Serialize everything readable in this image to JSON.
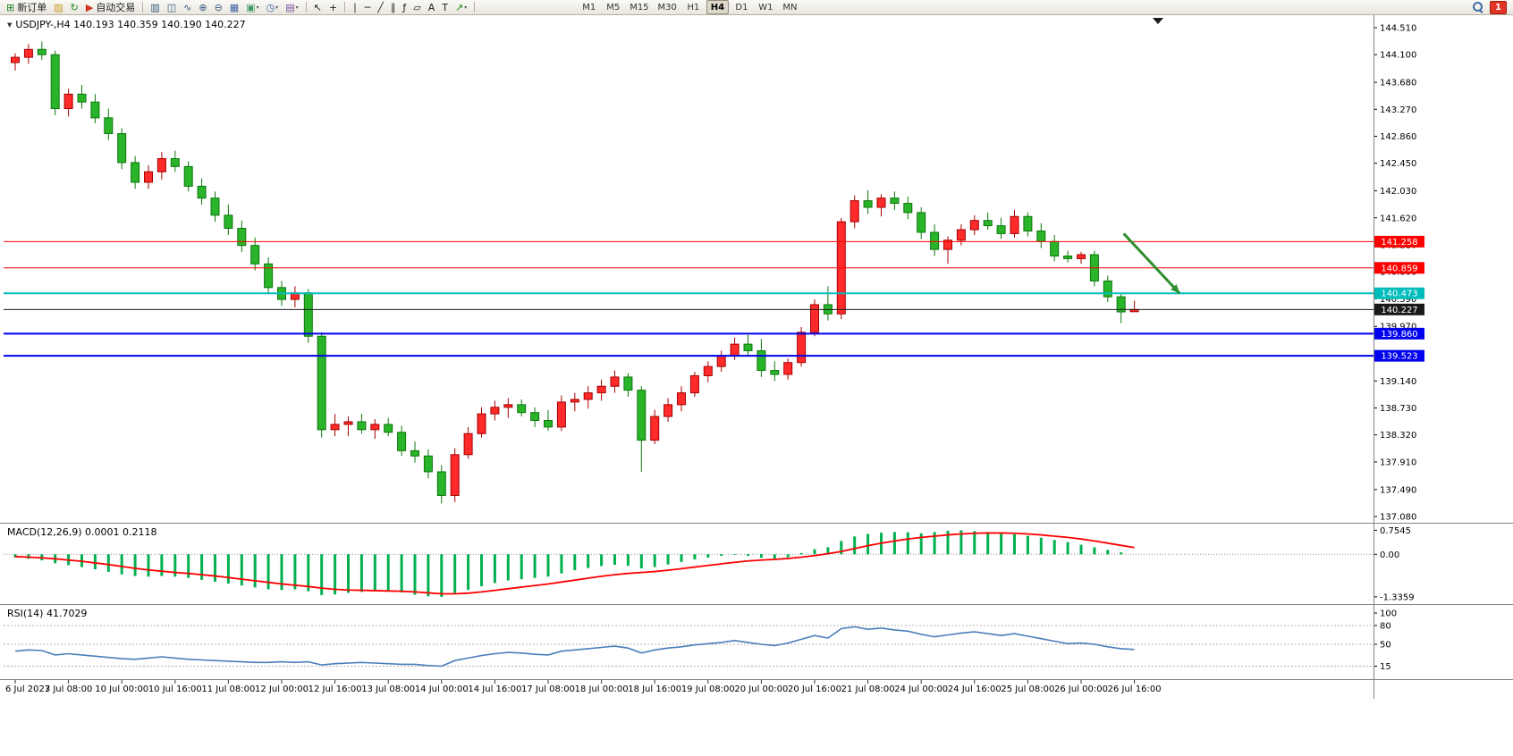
{
  "toolbar": {
    "badge": "1",
    "groups": [
      {
        "items": [
          {
            "name": "new-order",
            "glyph": "⊞",
            "color": "#1d7d1d",
            "label": "新订单"
          }
        ]
      },
      {
        "items": [
          {
            "name": "profiles",
            "glyph": "▨",
            "color": "#c79a24"
          },
          {
            "name": "refresh",
            "glyph": "↻",
            "color": "#1d8a1d"
          }
        ]
      },
      {
        "items": [
          {
            "name": "autotrade",
            "glyph": "▶",
            "color": "#cf3322",
            "label": "自动交易"
          }
        ]
      },
      {
        "sep": true
      },
      {
        "items": [
          {
            "name": "bar-chart",
            "glyph": "▥",
            "color": "#30577e"
          },
          {
            "name": "candlestick-chart",
            "glyph": "◫",
            "color": "#30577e"
          },
          {
            "name": "line-chart",
            "glyph": "∿",
            "color": "#30577e"
          },
          {
            "name": "zoom-in",
            "glyph": "⊕",
            "color": "#30577e"
          },
          {
            "name": "zoom-out",
            "glyph": "⊖",
            "color": "#30577e"
          },
          {
            "name": "tile-windows",
            "glyph": "▦",
            "color": "#3f62a5"
          },
          {
            "name": "indicators",
            "glyph": "▣",
            "color": "#3f9a5f",
            "caret": true
          },
          {
            "name": "periods",
            "glyph": "◷",
            "color": "#3f62a5",
            "caret": true
          },
          {
            "name": "templates",
            "glyph": "▤",
            "color": "#7a4fa0",
            "caret": true
          }
        ]
      },
      {
        "sep": true
      },
      {
        "items": [
          {
            "name": "cursor",
            "glyph": "↖",
            "color": "#1e1e1e"
          },
          {
            "name": "crosshair",
            "glyph": "+",
            "color": "#1e1e1e"
          }
        ]
      },
      {
        "sep": true
      },
      {
        "items": [
          {
            "name": "vertical-line",
            "glyph": "∣",
            "color": "#1e1e1e"
          },
          {
            "name": "horizontal-line",
            "glyph": "─",
            "color": "#1e1e1e"
          },
          {
            "name": "trendline",
            "glyph": "╱",
            "color": "#1e1e1e"
          },
          {
            "name": "equidistant-channel",
            "glyph": "∥",
            "color": "#1e1e1e"
          },
          {
            "name": "fibonacci",
            "glyph": "ƒ",
            "color": "#1e1e1e"
          },
          {
            "name": "shapes",
            "glyph": "▱",
            "color": "#1e1e1e"
          },
          {
            "name": "text",
            "glyph": "A",
            "color": "#1e1e1e"
          },
          {
            "name": "text-label",
            "glyph": "T",
            "color": "#1e1e1e"
          },
          {
            "name": "arrows",
            "glyph": "↗",
            "color": "#1d8a1d",
            "caret": true
          }
        ]
      },
      {
        "sep": true
      },
      {
        "timeframes": [
          "M1",
          "M5",
          "M15",
          "M30",
          "H1",
          "H4",
          "D1",
          "W1",
          "MN"
        ],
        "active": "H4"
      }
    ]
  },
  "chart": {
    "symbol_info": "USDJPY-,H4 140.193 140.359 140.190 140.227",
    "price_axis_labels": [
      "144.510",
      "144.100",
      "143.680",
      "143.270",
      "142.860",
      "142.450",
      "142.030",
      "141.620",
      "141.210",
      "140.800",
      "140.390",
      "139.970",
      "139.560",
      "139.140",
      "138.730",
      "138.320",
      "137.910",
      "137.490",
      "137.080"
    ],
    "hlines": [
      {
        "value": 141.258,
        "label": "141.258",
        "color": "#ff0000",
        "width": 1
      },
      {
        "value": 140.859,
        "label": "140.859",
        "color": "#ff0000",
        "width": 1
      },
      {
        "value": 140.473,
        "label": "140.473",
        "color": "#00bdbd",
        "width": 2
      },
      {
        "value": 139.86,
        "label": "139.860",
        "color": "#0000ee",
        "width": 2
      },
      {
        "value": 139.523,
        "label": "139.523",
        "color": "#0000ee",
        "width": 2
      },
      {
        "value": 140.227,
        "label": "140.227",
        "color": "#1a1a1a",
        "width": 1,
        "type": "bid"
      }
    ],
    "time_axis_labels": [
      {
        "bar": 0,
        "text": "6 Jul 2023"
      },
      {
        "bar": 4,
        "text": "7 Jul 08:00"
      },
      {
        "bar": 8,
        "text": "10 Jul 00:00"
      },
      {
        "bar": 12,
        "text": "10 Jul 16:00"
      },
      {
        "bar": 16,
        "text": "11 Jul 08:00"
      },
      {
        "bar": 20,
        "text": "12 Jul 00:00"
      },
      {
        "bar": 24,
        "text": "12 Jul 16:00"
      },
      {
        "bar": 28,
        "text": "13 Jul 08:00"
      },
      {
        "bar": 32,
        "text": "14 Jul 00:00"
      },
      {
        "bar": 36,
        "text": "14 Jul 16:00"
      },
      {
        "bar": 40,
        "text": "17 Jul 08:00"
      },
      {
        "bar": 44,
        "text": "18 Jul 00:00"
      },
      {
        "bar": 48,
        "text": "18 Jul 16:00"
      },
      {
        "bar": 52,
        "text": "19 Jul 08:00"
      },
      {
        "bar": 56,
        "text": "20 Jul 00:00"
      },
      {
        "bar": 60,
        "text": "20 Jul 16:00"
      },
      {
        "bar": 64,
        "text": "21 Jul 08:00"
      },
      {
        "bar": 68,
        "text": "24 Jul 00:00"
      },
      {
        "bar": 72,
        "text": "24 Jul 16:00"
      },
      {
        "bar": 76,
        "text": "25 Jul 08:00"
      },
      {
        "bar": 80,
        "text": "26 Jul 00:00"
      },
      {
        "bar": 84,
        "text": "26 Jul 16:00"
      }
    ],
    "arrow_annotation": {
      "from_bar": 83.2,
      "from_price": 141.38,
      "to_bar": 87.4,
      "to_price": 140.47,
      "color": "#2f8f2f"
    }
  },
  "macd_panel": {
    "label": "MACD(12,26,9) 0.0001 0.2118",
    "axis_labels": [
      {
        "value": 0.7545,
        "text": "0.7545"
      },
      {
        "value": 0,
        "text": "0.00"
      },
      {
        "value": -1.3359,
        "text": "-1.3359"
      }
    ]
  },
  "rsi_panel": {
    "label": "RSI(14) 41.7029",
    "axis_labels": [
      {
        "value": 100,
        "text": "100"
      },
      {
        "value": 80,
        "text": "80"
      },
      {
        "value": 50,
        "text": "50"
      },
      {
        "value": 15,
        "text": "15"
      }
    ],
    "levels": [
      80,
      50,
      15
    ]
  },
  "colors": {
    "candle_up_fill": "#ff2a2a",
    "candle_up_border": "#a50000",
    "candle_down_fill": "#2ab42a",
    "candle_down_border": "#0d770d",
    "macd_histogram": "#00b050",
    "macd_signal": "#ff0000",
    "rsi_line": "#4a7ebb",
    "axis_text": "#000000",
    "separator": "#828282"
  },
  "chart_data": {
    "type": "candlestick",
    "symbol": "USDJPY-",
    "timeframe": "H4",
    "price_range": [
      137.08,
      144.51
    ],
    "last_ohlc": {
      "open": 140.193,
      "high": 140.359,
      "low": 140.19,
      "close": 140.227
    },
    "color_convention": "red-up-green-down",
    "horizontal_levels": [
      141.258,
      140.859,
      140.473,
      140.227,
      139.86,
      139.523
    ],
    "candles": [
      [
        143.98,
        144.12,
        143.86,
        144.06
      ],
      [
        144.06,
        144.26,
        143.96,
        144.18
      ],
      [
        144.18,
        144.3,
        144.02,
        144.1
      ],
      [
        144.1,
        144.16,
        143.18,
        143.28
      ],
      [
        143.28,
        143.58,
        143.16,
        143.5
      ],
      [
        143.5,
        143.64,
        143.28,
        143.38
      ],
      [
        143.38,
        143.5,
        143.06,
        143.14
      ],
      [
        143.14,
        143.28,
        142.8,
        142.9
      ],
      [
        142.9,
        142.98,
        142.36,
        142.46
      ],
      [
        142.46,
        142.56,
        142.06,
        142.16
      ],
      [
        142.16,
        142.42,
        142.06,
        142.32
      ],
      [
        142.32,
        142.62,
        142.2,
        142.52
      ],
      [
        142.52,
        142.64,
        142.32,
        142.4
      ],
      [
        142.4,
        142.48,
        142.02,
        142.1
      ],
      [
        142.1,
        142.22,
        141.82,
        141.92
      ],
      [
        141.92,
        142.02,
        141.56,
        141.66
      ],
      [
        141.66,
        141.82,
        141.36,
        141.46
      ],
      [
        141.46,
        141.58,
        141.1,
        141.2
      ],
      [
        141.2,
        141.32,
        140.82,
        140.92
      ],
      [
        140.92,
        141.02,
        140.46,
        140.56
      ],
      [
        140.56,
        140.66,
        140.28,
        140.38
      ],
      [
        140.38,
        140.58,
        140.26,
        140.48
      ],
      [
        140.48,
        140.54,
        139.72,
        139.82
      ],
      [
        139.82,
        139.88,
        138.28,
        138.4
      ],
      [
        138.4,
        138.64,
        138.3,
        138.48
      ],
      [
        138.48,
        138.6,
        138.3,
        138.52
      ],
      [
        138.52,
        138.64,
        138.34,
        138.4
      ],
      [
        138.4,
        138.56,
        138.26,
        138.48
      ],
      [
        138.48,
        138.58,
        138.3,
        138.36
      ],
      [
        138.36,
        138.46,
        138.0,
        138.08
      ],
      [
        138.08,
        138.22,
        137.9,
        138.0
      ],
      [
        138.0,
        138.1,
        137.66,
        137.76
      ],
      [
        137.76,
        137.86,
        137.28,
        137.4
      ],
      [
        137.4,
        138.12,
        137.3,
        138.02
      ],
      [
        138.02,
        138.44,
        137.96,
        138.34
      ],
      [
        138.34,
        138.74,
        138.28,
        138.64
      ],
      [
        138.64,
        138.84,
        138.54,
        138.74
      ],
      [
        138.74,
        138.88,
        138.58,
        138.78
      ],
      [
        138.78,
        138.86,
        138.6,
        138.66
      ],
      [
        138.66,
        138.74,
        138.44,
        138.54
      ],
      [
        138.54,
        138.7,
        138.38,
        138.44
      ],
      [
        138.44,
        138.92,
        138.38,
        138.82
      ],
      [
        138.82,
        138.96,
        138.68,
        138.86
      ],
      [
        138.86,
        139.06,
        138.72,
        138.96
      ],
      [
        138.96,
        139.16,
        138.84,
        139.06
      ],
      [
        139.06,
        139.3,
        138.96,
        139.2
      ],
      [
        139.2,
        139.26,
        138.9,
        139.0
      ],
      [
        139.0,
        139.06,
        137.76,
        138.24
      ],
      [
        138.24,
        138.7,
        138.18,
        138.6
      ],
      [
        138.6,
        138.88,
        138.52,
        138.78
      ],
      [
        138.78,
        139.06,
        138.68,
        138.96
      ],
      [
        138.96,
        139.28,
        138.9,
        139.22
      ],
      [
        139.22,
        139.44,
        139.12,
        139.36
      ],
      [
        139.36,
        139.6,
        139.28,
        139.52
      ],
      [
        139.52,
        139.8,
        139.46,
        139.7
      ],
      [
        139.7,
        139.84,
        139.52,
        139.6
      ],
      [
        139.6,
        139.78,
        139.2,
        139.3
      ],
      [
        139.3,
        139.44,
        139.14,
        139.24
      ],
      [
        139.24,
        139.48,
        139.16,
        139.42
      ],
      [
        139.42,
        139.96,
        139.36,
        139.88
      ],
      [
        139.88,
        140.38,
        139.82,
        140.3
      ],
      [
        140.3,
        140.58,
        140.06,
        140.16
      ],
      [
        140.16,
        141.62,
        140.08,
        141.56
      ],
      [
        141.56,
        141.96,
        141.46,
        141.88
      ],
      [
        141.88,
        142.04,
        141.68,
        141.78
      ],
      [
        141.78,
        141.98,
        141.64,
        141.92
      ],
      [
        141.92,
        142.02,
        141.74,
        141.84
      ],
      [
        141.84,
        141.94,
        141.6,
        141.7
      ],
      [
        141.7,
        141.78,
        141.3,
        141.4
      ],
      [
        141.4,
        141.52,
        141.04,
        141.14
      ],
      [
        141.14,
        141.34,
        140.92,
        141.28
      ],
      [
        141.28,
        141.52,
        141.2,
        141.44
      ],
      [
        141.44,
        141.66,
        141.36,
        141.58
      ],
      [
        141.58,
        141.7,
        141.44,
        141.5
      ],
      [
        141.5,
        141.62,
        141.3,
        141.38
      ],
      [
        141.38,
        141.74,
        141.32,
        141.64
      ],
      [
        141.64,
        141.7,
        141.34,
        141.42
      ],
      [
        141.42,
        141.54,
        141.16,
        141.26
      ],
      [
        141.26,
        141.36,
        140.96,
        141.04
      ],
      [
        141.04,
        141.12,
        140.94,
        141.0
      ],
      [
        141.0,
        141.1,
        140.92,
        141.06
      ],
      [
        141.06,
        141.12,
        140.58,
        140.66
      ],
      [
        140.66,
        140.74,
        140.34,
        140.42
      ],
      [
        140.42,
        140.48,
        140.02,
        140.19
      ],
      [
        140.193,
        140.359,
        140.19,
        140.227
      ]
    ],
    "indicators": {
      "macd": {
        "params": "12,26,9",
        "last_values": [
          0.0001,
          0.2118
        ],
        "histogram": [
          -0.1,
          -0.14,
          -0.19,
          -0.28,
          -0.34,
          -0.4,
          -0.47,
          -0.55,
          -0.63,
          -0.68,
          -0.7,
          -0.68,
          -0.7,
          -0.74,
          -0.8,
          -0.86,
          -0.92,
          -0.98,
          -1.04,
          -1.1,
          -1.12,
          -1.1,
          -1.16,
          -1.28,
          -1.26,
          -1.21,
          -1.18,
          -1.16,
          -1.17,
          -1.2,
          -1.27,
          -1.32,
          -1.3359,
          -1.24,
          -1.12,
          -1.0,
          -0.9,
          -0.82,
          -0.78,
          -0.74,
          -0.7,
          -0.6,
          -0.5,
          -0.43,
          -0.37,
          -0.33,
          -0.36,
          -0.44,
          -0.4,
          -0.32,
          -0.24,
          -0.16,
          -0.1,
          -0.05,
          -0.02,
          -0.05,
          -0.11,
          -0.14,
          -0.09,
          0.04,
          0.16,
          0.22,
          0.42,
          0.56,
          0.64,
          0.68,
          0.7,
          0.69,
          0.66,
          0.7,
          0.74,
          0.7545,
          0.73,
          0.7,
          0.66,
          0.63,
          0.58,
          0.52,
          0.45,
          0.38,
          0.3,
          0.22,
          0.14,
          0.06,
          0.0001
        ],
        "signal": [
          -0.07,
          -0.09,
          -0.11,
          -0.14,
          -0.18,
          -0.22,
          -0.27,
          -0.32,
          -0.38,
          -0.44,
          -0.49,
          -0.53,
          -0.57,
          -0.6,
          -0.64,
          -0.68,
          -0.73,
          -0.78,
          -0.83,
          -0.88,
          -0.93,
          -0.97,
          -1.01,
          -1.06,
          -1.1,
          -1.12,
          -1.13,
          -1.14,
          -1.15,
          -1.16,
          -1.18,
          -1.21,
          -1.24,
          -1.24,
          -1.22,
          -1.18,
          -1.13,
          -1.08,
          -1.03,
          -0.98,
          -0.93,
          -0.87,
          -0.81,
          -0.75,
          -0.69,
          -0.64,
          -0.6,
          -0.57,
          -0.54,
          -0.5,
          -0.45,
          -0.4,
          -0.35,
          -0.3,
          -0.25,
          -0.21,
          -0.18,
          -0.16,
          -0.13,
          -0.09,
          -0.04,
          0.02,
          0.09,
          0.18,
          0.27,
          0.35,
          0.42,
          0.48,
          0.53,
          0.57,
          0.61,
          0.64,
          0.66,
          0.67,
          0.67,
          0.66,
          0.64,
          0.61,
          0.57,
          0.53,
          0.48,
          0.42,
          0.35,
          0.28,
          0.2118
        ]
      },
      "rsi": {
        "period": 14,
        "last_value": 41.7029,
        "values": [
          39,
          41,
          40,
          33,
          35,
          33,
          31,
          29,
          27,
          26,
          28,
          30,
          28,
          26,
          25,
          24,
          23,
          22,
          21,
          21,
          22,
          21,
          22,
          17,
          19,
          20,
          21,
          20,
          19,
          18,
          18,
          16,
          15,
          24,
          28,
          32,
          35,
          37,
          36,
          34,
          33,
          39,
          41,
          43,
          45,
          47,
          44,
          36,
          41,
          44,
          46,
          49,
          51,
          53,
          56,
          53,
          50,
          48,
          52,
          58,
          64,
          60,
          75,
          78,
          74,
          76,
          73,
          71,
          66,
          62,
          65,
          68,
          70,
          67,
          64,
          67,
          63,
          59,
          55,
          51,
          52,
          50,
          46,
          43,
          41.7029
        ]
      }
    }
  }
}
